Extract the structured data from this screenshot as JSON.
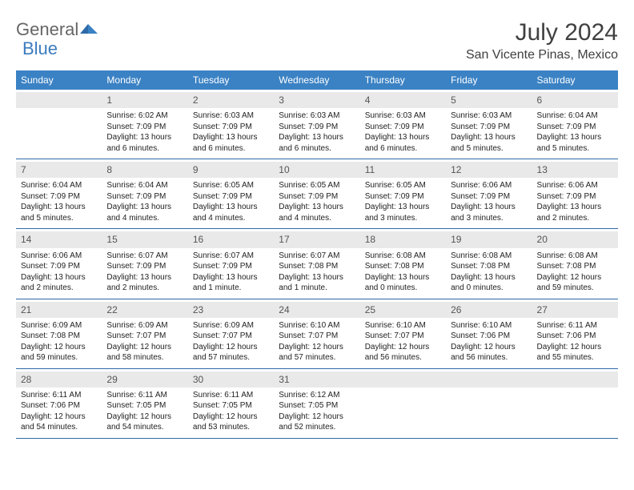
{
  "logo": {
    "general": "General",
    "blue": "Blue"
  },
  "title": "July 2024",
  "location": "San Vicente Pinas, Mexico",
  "colors": {
    "header_bg": "#3b82c4",
    "header_fg": "#ffffff",
    "daynum_bg": "#e9e9e9",
    "cell_border": "#2f6aa8",
    "logo_blue": "#3b7bbf",
    "logo_gray": "#666666",
    "text": "#222222"
  },
  "weekdays": [
    "Sunday",
    "Monday",
    "Tuesday",
    "Wednesday",
    "Thursday",
    "Friday",
    "Saturday"
  ],
  "weeks": [
    [
      null,
      {
        "n": "1",
        "sr": "6:02 AM",
        "ss": "7:09 PM",
        "dl": "13 hours and 6 minutes."
      },
      {
        "n": "2",
        "sr": "6:03 AM",
        "ss": "7:09 PM",
        "dl": "13 hours and 6 minutes."
      },
      {
        "n": "3",
        "sr": "6:03 AM",
        "ss": "7:09 PM",
        "dl": "13 hours and 6 minutes."
      },
      {
        "n": "4",
        "sr": "6:03 AM",
        "ss": "7:09 PM",
        "dl": "13 hours and 6 minutes."
      },
      {
        "n": "5",
        "sr": "6:03 AM",
        "ss": "7:09 PM",
        "dl": "13 hours and 5 minutes."
      },
      {
        "n": "6",
        "sr": "6:04 AM",
        "ss": "7:09 PM",
        "dl": "13 hours and 5 minutes."
      }
    ],
    [
      {
        "n": "7",
        "sr": "6:04 AM",
        "ss": "7:09 PM",
        "dl": "13 hours and 5 minutes."
      },
      {
        "n": "8",
        "sr": "6:04 AM",
        "ss": "7:09 PM",
        "dl": "13 hours and 4 minutes."
      },
      {
        "n": "9",
        "sr": "6:05 AM",
        "ss": "7:09 PM",
        "dl": "13 hours and 4 minutes."
      },
      {
        "n": "10",
        "sr": "6:05 AM",
        "ss": "7:09 PM",
        "dl": "13 hours and 4 minutes."
      },
      {
        "n": "11",
        "sr": "6:05 AM",
        "ss": "7:09 PM",
        "dl": "13 hours and 3 minutes."
      },
      {
        "n": "12",
        "sr": "6:06 AM",
        "ss": "7:09 PM",
        "dl": "13 hours and 3 minutes."
      },
      {
        "n": "13",
        "sr": "6:06 AM",
        "ss": "7:09 PM",
        "dl": "13 hours and 2 minutes."
      }
    ],
    [
      {
        "n": "14",
        "sr": "6:06 AM",
        "ss": "7:09 PM",
        "dl": "13 hours and 2 minutes."
      },
      {
        "n": "15",
        "sr": "6:07 AM",
        "ss": "7:09 PM",
        "dl": "13 hours and 2 minutes."
      },
      {
        "n": "16",
        "sr": "6:07 AM",
        "ss": "7:09 PM",
        "dl": "13 hours and 1 minute."
      },
      {
        "n": "17",
        "sr": "6:07 AM",
        "ss": "7:08 PM",
        "dl": "13 hours and 1 minute."
      },
      {
        "n": "18",
        "sr": "6:08 AM",
        "ss": "7:08 PM",
        "dl": "13 hours and 0 minutes."
      },
      {
        "n": "19",
        "sr": "6:08 AM",
        "ss": "7:08 PM",
        "dl": "13 hours and 0 minutes."
      },
      {
        "n": "20",
        "sr": "6:08 AM",
        "ss": "7:08 PM",
        "dl": "12 hours and 59 minutes."
      }
    ],
    [
      {
        "n": "21",
        "sr": "6:09 AM",
        "ss": "7:08 PM",
        "dl": "12 hours and 59 minutes."
      },
      {
        "n": "22",
        "sr": "6:09 AM",
        "ss": "7:07 PM",
        "dl": "12 hours and 58 minutes."
      },
      {
        "n": "23",
        "sr": "6:09 AM",
        "ss": "7:07 PM",
        "dl": "12 hours and 57 minutes."
      },
      {
        "n": "24",
        "sr": "6:10 AM",
        "ss": "7:07 PM",
        "dl": "12 hours and 57 minutes."
      },
      {
        "n": "25",
        "sr": "6:10 AM",
        "ss": "7:07 PM",
        "dl": "12 hours and 56 minutes."
      },
      {
        "n": "26",
        "sr": "6:10 AM",
        "ss": "7:06 PM",
        "dl": "12 hours and 56 minutes."
      },
      {
        "n": "27",
        "sr": "6:11 AM",
        "ss": "7:06 PM",
        "dl": "12 hours and 55 minutes."
      }
    ],
    [
      {
        "n": "28",
        "sr": "6:11 AM",
        "ss": "7:06 PM",
        "dl": "12 hours and 54 minutes."
      },
      {
        "n": "29",
        "sr": "6:11 AM",
        "ss": "7:05 PM",
        "dl": "12 hours and 54 minutes."
      },
      {
        "n": "30",
        "sr": "6:11 AM",
        "ss": "7:05 PM",
        "dl": "12 hours and 53 minutes."
      },
      {
        "n": "31",
        "sr": "6:12 AM",
        "ss": "7:05 PM",
        "dl": "12 hours and 52 minutes."
      },
      null,
      null,
      null
    ]
  ],
  "labels": {
    "sunrise": "Sunrise:",
    "sunset": "Sunset:",
    "daylight": "Daylight:"
  }
}
